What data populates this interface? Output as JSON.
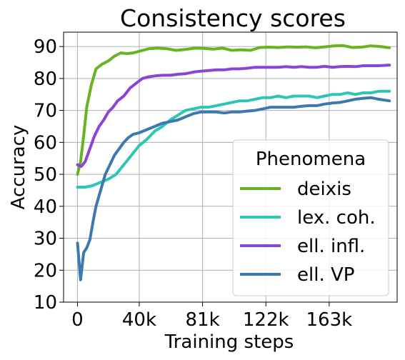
{
  "chart_data": {
    "type": "line",
    "title": "Consistency scores",
    "xlabel": "Training steps",
    "ylabel": "Accuracy",
    "x_ticks": [
      {
        "value": 0,
        "label": "0"
      },
      {
        "value": 40000,
        "label": "40k"
      },
      {
        "value": 81000,
        "label": "81k"
      },
      {
        "value": 122000,
        "label": "122k"
      },
      {
        "value": 163000,
        "label": "163k"
      }
    ],
    "y_ticks": [
      10,
      20,
      30,
      40,
      50,
      60,
      70,
      80,
      90
    ],
    "xlim": [
      -9000,
      207000
    ],
    "ylim": [
      10,
      94.5
    ],
    "grid": true,
    "legend": {
      "title": "Phenomena",
      "placement": "lower-right"
    },
    "series": [
      {
        "name": "deixis",
        "color": "#69b320",
        "points": [
          [
            0,
            50
          ],
          [
            2000,
            54
          ],
          [
            4000,
            62
          ],
          [
            6000,
            71
          ],
          [
            9000,
            78
          ],
          [
            12000,
            83
          ],
          [
            16000,
            84.5
          ],
          [
            20000,
            85.5
          ],
          [
            24000,
            87
          ],
          [
            28000,
            88
          ],
          [
            32000,
            87.8
          ],
          [
            36000,
            88
          ],
          [
            40000,
            88.5
          ],
          [
            46000,
            89.3
          ],
          [
            52000,
            89.5
          ],
          [
            58000,
            89.3
          ],
          [
            64000,
            88.8
          ],
          [
            70000,
            89.1
          ],
          [
            76000,
            89.5
          ],
          [
            82000,
            89.4
          ],
          [
            88000,
            89.2
          ],
          [
            94000,
            89.5
          ],
          [
            100000,
            88.8
          ],
          [
            106000,
            89
          ],
          [
            112000,
            88.8
          ],
          [
            118000,
            89.7
          ],
          [
            124000,
            89.8
          ],
          [
            130000,
            89.7
          ],
          [
            136000,
            89.9
          ],
          [
            142000,
            89.8
          ],
          [
            148000,
            89.9
          ],
          [
            154000,
            89.6
          ],
          [
            160000,
            89.9
          ],
          [
            166000,
            90.2
          ],
          [
            172000,
            90.3
          ],
          [
            178000,
            89.7
          ],
          [
            184000,
            89.8
          ],
          [
            190000,
            90.2
          ],
          [
            196000,
            90
          ],
          [
            202000,
            89.6
          ]
        ]
      },
      {
        "name": "lex. coh.",
        "color": "#2ec4b6",
        "points": [
          [
            0,
            46
          ],
          [
            5000,
            46
          ],
          [
            10000,
            46.5
          ],
          [
            15000,
            47.5
          ],
          [
            20000,
            48.5
          ],
          [
            25000,
            50
          ],
          [
            30000,
            53
          ],
          [
            35000,
            56
          ],
          [
            40000,
            59
          ],
          [
            45000,
            61
          ],
          [
            50000,
            63.5
          ],
          [
            55000,
            65
          ],
          [
            60000,
            67
          ],
          [
            65000,
            68.5
          ],
          [
            70000,
            70
          ],
          [
            75000,
            70.5
          ],
          [
            80000,
            71
          ],
          [
            85000,
            71
          ],
          [
            90000,
            71.5
          ],
          [
            95000,
            72
          ],
          [
            100000,
            72.5
          ],
          [
            105000,
            73
          ],
          [
            110000,
            73
          ],
          [
            115000,
            73.5
          ],
          [
            120000,
            74
          ],
          [
            125000,
            74
          ],
          [
            130000,
            74.5
          ],
          [
            135000,
            74
          ],
          [
            140000,
            74.5
          ],
          [
            145000,
            74.5
          ],
          [
            150000,
            74.5
          ],
          [
            155000,
            74
          ],
          [
            160000,
            74.5
          ],
          [
            165000,
            75
          ],
          [
            170000,
            75
          ],
          [
            175000,
            75.5
          ],
          [
            180000,
            75
          ],
          [
            185000,
            75.5
          ],
          [
            190000,
            75.5
          ],
          [
            195000,
            76
          ],
          [
            202000,
            76
          ]
        ]
      },
      {
        "name": "ell. infl.",
        "color": "#8b44d6",
        "points": [
          [
            0,
            53
          ],
          [
            2500,
            52.5
          ],
          [
            5000,
            54
          ],
          [
            8000,
            58
          ],
          [
            11000,
            62
          ],
          [
            14000,
            65
          ],
          [
            17000,
            67
          ],
          [
            20000,
            69.5
          ],
          [
            23000,
            71
          ],
          [
            26000,
            73
          ],
          [
            30000,
            74.5
          ],
          [
            34000,
            77
          ],
          [
            38000,
            78.5
          ],
          [
            42000,
            80
          ],
          [
            46000,
            80.5
          ],
          [
            50000,
            80.8
          ],
          [
            55000,
            81
          ],
          [
            60000,
            81
          ],
          [
            65000,
            81.3
          ],
          [
            70000,
            81.5
          ],
          [
            75000,
            82
          ],
          [
            80000,
            82.3
          ],
          [
            85000,
            82.5
          ],
          [
            90000,
            82.7
          ],
          [
            95000,
            82.7
          ],
          [
            100000,
            83
          ],
          [
            105000,
            83
          ],
          [
            110000,
            83.2
          ],
          [
            115000,
            83.5
          ],
          [
            120000,
            83.5
          ],
          [
            125000,
            83.5
          ],
          [
            130000,
            83.5
          ],
          [
            135000,
            83.7
          ],
          [
            140000,
            83.5
          ],
          [
            145000,
            83.7
          ],
          [
            150000,
            83.5
          ],
          [
            155000,
            83.5
          ],
          [
            160000,
            83.8
          ],
          [
            165000,
            83.5
          ],
          [
            170000,
            83.7
          ],
          [
            175000,
            83.8
          ],
          [
            180000,
            83.7
          ],
          [
            185000,
            84
          ],
          [
            190000,
            84
          ],
          [
            195000,
            84
          ],
          [
            202000,
            84.2
          ]
        ]
      },
      {
        "name": "ell. VP",
        "color": "#3d78b0",
        "points": [
          [
            0,
            28.5
          ],
          [
            2000,
            17
          ],
          [
            4000,
            25.5
          ],
          [
            6000,
            27
          ],
          [
            8000,
            29.5
          ],
          [
            10000,
            35
          ],
          [
            12000,
            40
          ],
          [
            15000,
            45
          ],
          [
            18000,
            50
          ],
          [
            21000,
            53
          ],
          [
            24000,
            56
          ],
          [
            27000,
            58
          ],
          [
            30000,
            60
          ],
          [
            33000,
            61.5
          ],
          [
            36000,
            62.5
          ],
          [
            40000,
            63
          ],
          [
            45000,
            64
          ],
          [
            50000,
            65
          ],
          [
            55000,
            66
          ],
          [
            60000,
            66.5
          ],
          [
            65000,
            67
          ],
          [
            70000,
            68
          ],
          [
            75000,
            69
          ],
          [
            80000,
            69.5
          ],
          [
            85000,
            69.5
          ],
          [
            90000,
            69.5
          ],
          [
            95000,
            69.2
          ],
          [
            100000,
            69.5
          ],
          [
            105000,
            69.5
          ],
          [
            110000,
            69.8
          ],
          [
            115000,
            70
          ],
          [
            120000,
            70.5
          ],
          [
            125000,
            71
          ],
          [
            130000,
            71
          ],
          [
            135000,
            71
          ],
          [
            140000,
            71
          ],
          [
            145000,
            71.3
          ],
          [
            150000,
            71.5
          ],
          [
            155000,
            71.5
          ],
          [
            160000,
            72
          ],
          [
            165000,
            72.3
          ],
          [
            170000,
            72.5
          ],
          [
            175000,
            73
          ],
          [
            180000,
            73.5
          ],
          [
            185000,
            73.8
          ],
          [
            190000,
            74
          ],
          [
            195000,
            73.5
          ],
          [
            202000,
            73
          ]
        ]
      }
    ]
  }
}
